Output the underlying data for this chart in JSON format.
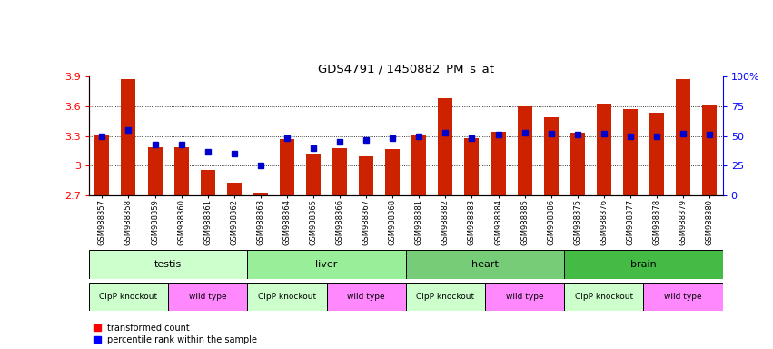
{
  "title": "GDS4791 / 1450882_PM_s_at",
  "samples": [
    "GSM988357",
    "GSM988358",
    "GSM988359",
    "GSM988360",
    "GSM988361",
    "GSM988362",
    "GSM988363",
    "GSM988364",
    "GSM988365",
    "GSM988366",
    "GSM988367",
    "GSM988368",
    "GSM988381",
    "GSM988382",
    "GSM988383",
    "GSM988384",
    "GSM988385",
    "GSM988386",
    "GSM988375",
    "GSM988376",
    "GSM988377",
    "GSM988378",
    "GSM988379",
    "GSM988380"
  ],
  "bar_values": [
    3.31,
    3.88,
    3.19,
    3.19,
    2.96,
    2.83,
    2.73,
    3.27,
    3.12,
    3.18,
    3.1,
    3.17,
    3.31,
    3.68,
    3.28,
    3.34,
    3.6,
    3.49,
    3.33,
    3.63,
    3.57,
    3.54,
    3.88,
    3.62
  ],
  "percentile_values": [
    50,
    55,
    43,
    43,
    37,
    35,
    25,
    48,
    40,
    45,
    47,
    48,
    50,
    53,
    48,
    51,
    53,
    52,
    51,
    52,
    50,
    50,
    52,
    51
  ],
  "tissue_groups": [
    {
      "label": "testis",
      "start": 0,
      "end": 6,
      "color": "#ccffcc"
    },
    {
      "label": "liver",
      "start": 6,
      "end": 12,
      "color": "#99ee99"
    },
    {
      "label": "heart",
      "start": 12,
      "end": 18,
      "color": "#66cc66"
    },
    {
      "label": "brain",
      "start": 18,
      "end": 24,
      "color": "#44bb44"
    }
  ],
  "genotype_groups": [
    {
      "label": "ClpP knockout",
      "start": 0,
      "end": 3,
      "color": "#ccffcc"
    },
    {
      "label": "wild type",
      "start": 3,
      "end": 6,
      "color": "#ff88ff"
    },
    {
      "label": "ClpP knockout",
      "start": 6,
      "end": 9,
      "color": "#ccffcc"
    },
    {
      "label": "wild type",
      "start": 9,
      "end": 12,
      "color": "#ff88ff"
    },
    {
      "label": "ClpP knockout",
      "start": 12,
      "end": 15,
      "color": "#ccffcc"
    },
    {
      "label": "wild type",
      "start": 15,
      "end": 18,
      "color": "#ff88ff"
    },
    {
      "label": "ClpP knockout",
      "start": 18,
      "end": 21,
      "color": "#ccffcc"
    },
    {
      "label": "wild type",
      "start": 21,
      "end": 24,
      "color": "#ff88ff"
    }
  ],
  "ylim": [
    2.7,
    3.9
  ],
  "yticks": [
    2.7,
    3.0,
    3.3,
    3.6,
    3.9
  ],
  "ytick_labels": [
    "2.7",
    "3",
    "3.3",
    "3.6",
    "3.9"
  ],
  "right_yticks": [
    0,
    25,
    50,
    75,
    100
  ],
  "right_ytick_labels": [
    "0",
    "25",
    "50",
    "75",
    "100%"
  ],
  "bar_color": "#cc2200",
  "dot_color": "#0000cc",
  "gridline_vals": [
    3.0,
    3.3,
    3.6
  ]
}
